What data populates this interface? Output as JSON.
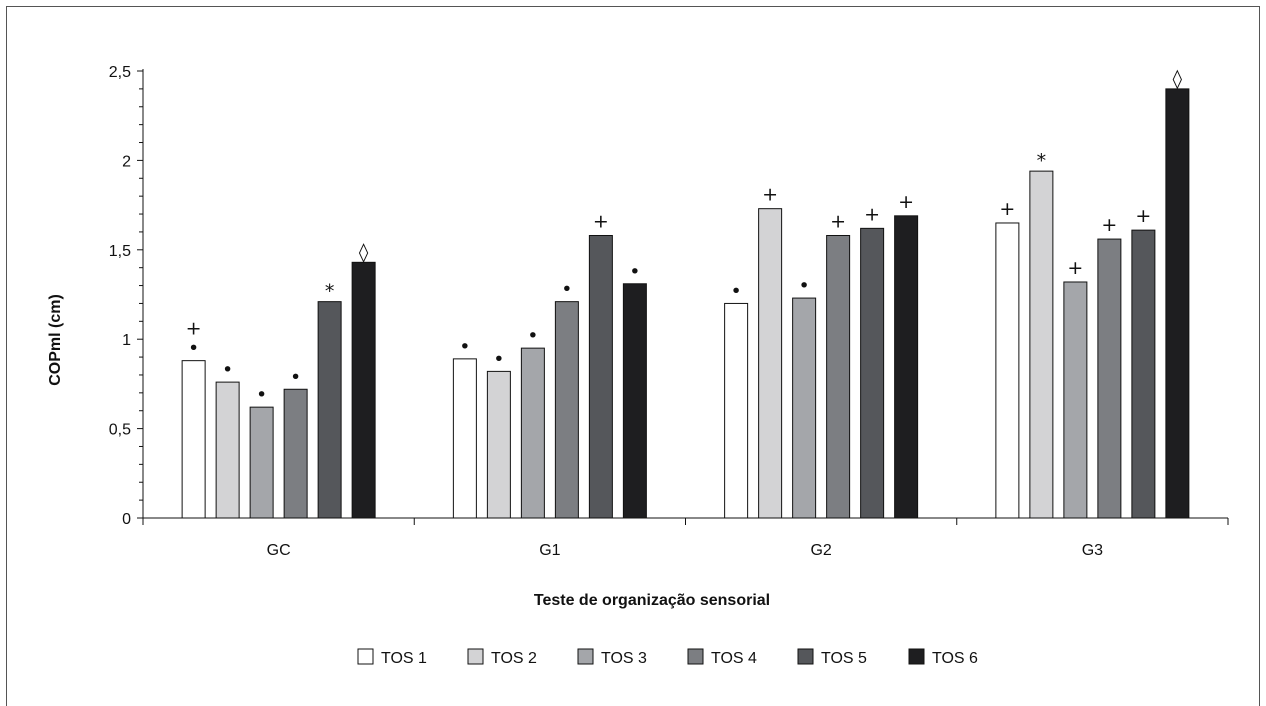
{
  "chart_data": {
    "type": "bar",
    "title": "",
    "xlabel": "Teste de organização sensorial",
    "ylabel": "COPml (cm)",
    "ylim": [
      0,
      2.5
    ],
    "yticks": [
      0,
      0.5,
      1,
      1.5,
      2,
      2.5
    ],
    "ytick_labels": [
      "0",
      "0,5",
      "1",
      "1,5",
      "2",
      "2,5"
    ],
    "grid": false,
    "legend_position": "bottom",
    "categories": [
      "GC",
      "G1",
      "G2",
      "G3"
    ],
    "series": [
      {
        "name": "TOS 1",
        "color": "#ffffff",
        "values": [
          0.88,
          0.89,
          1.2,
          1.65
        ],
        "markers": [
          "+•",
          "•",
          "•",
          "+"
        ]
      },
      {
        "name": "TOS 2",
        "color": "#d3d3d5",
        "values": [
          0.76,
          0.82,
          1.73,
          1.94
        ],
        "markers": [
          "•",
          "•",
          "+",
          "*"
        ]
      },
      {
        "name": "TOS 3",
        "color": "#a4a6aa",
        "values": [
          0.62,
          0.95,
          1.23,
          1.32
        ],
        "markers": [
          "•",
          "•",
          "•",
          "+"
        ]
      },
      {
        "name": "TOS 4",
        "color": "#7c7e82",
        "values": [
          0.72,
          1.21,
          1.58,
          1.56
        ],
        "markers": [
          "•",
          "•",
          "+",
          "+"
        ]
      },
      {
        "name": "TOS 5",
        "color": "#55575b",
        "values": [
          1.21,
          1.58,
          1.62,
          1.61
        ],
        "markers": [
          "*",
          "+",
          "+",
          "+"
        ]
      },
      {
        "name": "TOS 6",
        "color": "#1e1e20",
        "values": [
          1.43,
          1.31,
          1.69,
          2.4
        ],
        "markers": [
          "◊",
          "•",
          "+",
          "◊"
        ]
      }
    ]
  }
}
